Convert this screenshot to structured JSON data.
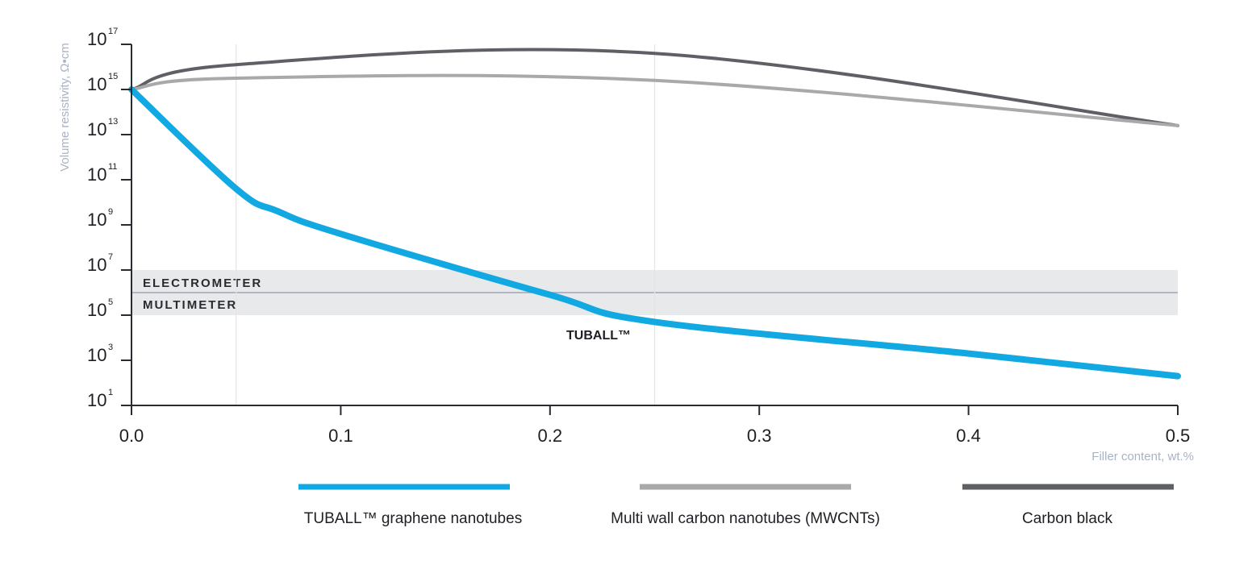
{
  "chart_data": {
    "type": "line",
    "title": "",
    "xlabel": "Filler content, wt.%",
    "ylabel": "Volume resistivity, Ω•cm",
    "xlim": [
      0,
      0.5
    ],
    "ylim_log10": [
      1,
      17
    ],
    "y_scale": "log",
    "x_ticks": [
      "0.0",
      "0.1",
      "0.2",
      "0.3",
      "0.4",
      "0.5"
    ],
    "x_tick_values": [
      0,
      0.1,
      0.2,
      0.3,
      0.4,
      0.5
    ],
    "y_ticks_exponents": [
      "17",
      "15",
      "13",
      "11",
      "9",
      "7",
      "5",
      "3",
      "1"
    ],
    "y_tick_base": "10",
    "vertical_gridlines": [
      0.05,
      0.25
    ],
    "band": {
      "from_log10": 5,
      "to_log10": 7,
      "divider_log10": 6,
      "upper_label": "ELECTROMETER",
      "lower_label": "MULTIMETER",
      "color": "#e8e9eb",
      "divider_color": "#9ea6b8"
    },
    "annotation": {
      "text": "TUBALL™",
      "x": 0.245,
      "log10_y": 4.2
    },
    "series": [
      {
        "name": "TUBALL™ graphene nanotubes",
        "color": "#12a9e2",
        "x": [
          0,
          0.05,
          0.07,
          0.1,
          0.2,
          0.25,
          0.4,
          0.5
        ],
        "log10_y": [
          15,
          10.6,
          9.6,
          8.6,
          5.9,
          4.7,
          3.3,
          2.3
        ]
      },
      {
        "name": "Multi wall carbon nanotubes (MWCNTs)",
        "color": "#a9a9ab",
        "x": [
          0,
          0.05,
          0.25,
          0.5
        ],
        "log10_y": [
          15,
          15.5,
          15.4,
          13.4
        ]
      },
      {
        "name": "Carbon black",
        "color": "#5f6066",
        "x": [
          0,
          0.05,
          0.25,
          0.5
        ],
        "log10_y": [
          15,
          16.1,
          16.6,
          13.4
        ]
      }
    ],
    "legend_position": "bottom"
  }
}
